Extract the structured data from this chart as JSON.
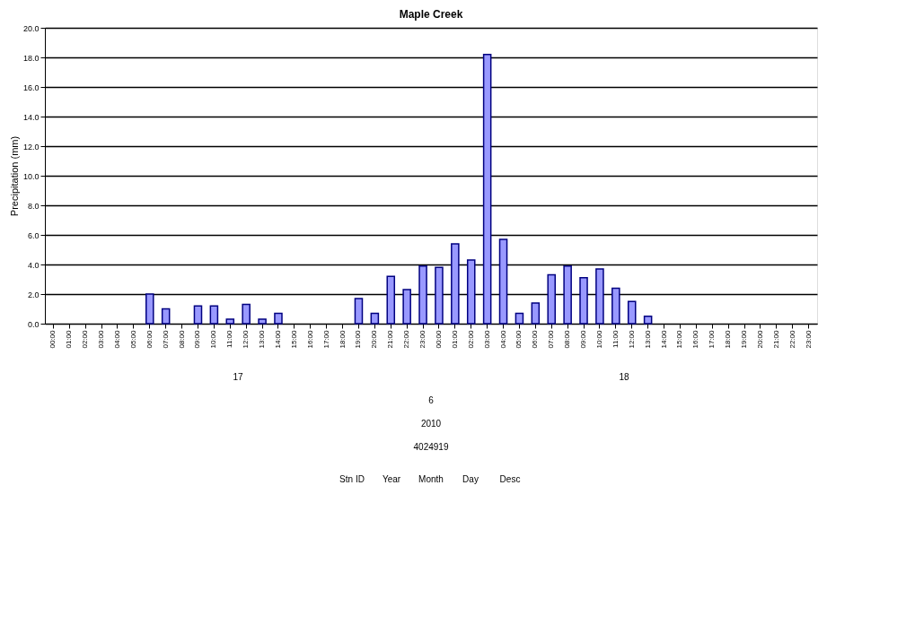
{
  "chart_data": {
    "type": "bar",
    "title": "Maple Creek",
    "ylabel": "Precipitation (mm)",
    "categories": [
      "00:00",
      "01:00",
      "02:00",
      "03:00",
      "04:00",
      "05:00",
      "06:00",
      "07:00",
      "08:00",
      "09:00",
      "10:00",
      "11:00",
      "12:00",
      "13:00",
      "14:00",
      "15:00",
      "16:00",
      "17:00",
      "18:00",
      "19:00",
      "20:00",
      "21:00",
      "22:00",
      "23:00",
      "00:00",
      "01:00",
      "02:00",
      "03:00",
      "04:00",
      "05:00",
      "06:00",
      "07:00",
      "08:00",
      "09:00",
      "10:00",
      "11:00",
      "12:00",
      "13:00",
      "14:00",
      "15:00",
      "16:00",
      "17:00",
      "18:00",
      "19:00",
      "20:00",
      "21:00",
      "22:00",
      "23:00"
    ],
    "series": [
      {
        "color": "#9999ff",
        "values": [
          null,
          null,
          null,
          null,
          null,
          null,
          2.0,
          1.0,
          null,
          1.2,
          1.2,
          0.3,
          1.3,
          0.3,
          0.7,
          null,
          null,
          null,
          null,
          1.7,
          0.7,
          3.2,
          2.3,
          3.9,
          3.8,
          5.4,
          4.3,
          18.2,
          5.7,
          0.7,
          1.4,
          3.3,
          3.9,
          3.1,
          3.7,
          2.4,
          1.5,
          0.5,
          null,
          null,
          null,
          null,
          null,
          null,
          null,
          null,
          null,
          null
        ]
      }
    ],
    "ylim": [
      0,
      20
    ],
    "yticks": [
      {
        "value": 0,
        "label": "0.0"
      },
      {
        "value": 2,
        "label": "2.0"
      },
      {
        "value": 4,
        "label": "4.0"
      },
      {
        "value": 6,
        "label": "6.0"
      },
      {
        "value": 8,
        "label": "8.0"
      },
      {
        "value": 10,
        "label": "10.0"
      },
      {
        "value": 12,
        "label": "12.0"
      },
      {
        "value": 14,
        "label": "14.0"
      },
      {
        "value": 16,
        "label": "16.0"
      },
      {
        "value": 18,
        "label": "18.0"
      },
      {
        "value": 20,
        "label": "20.0"
      }
    ],
    "grid": "y",
    "annotations": [
      "17",
      "18",
      "6",
      "2010",
      "4024919",
      "Stn ID",
      "Year",
      "Month",
      "Day",
      "Desc"
    ]
  }
}
